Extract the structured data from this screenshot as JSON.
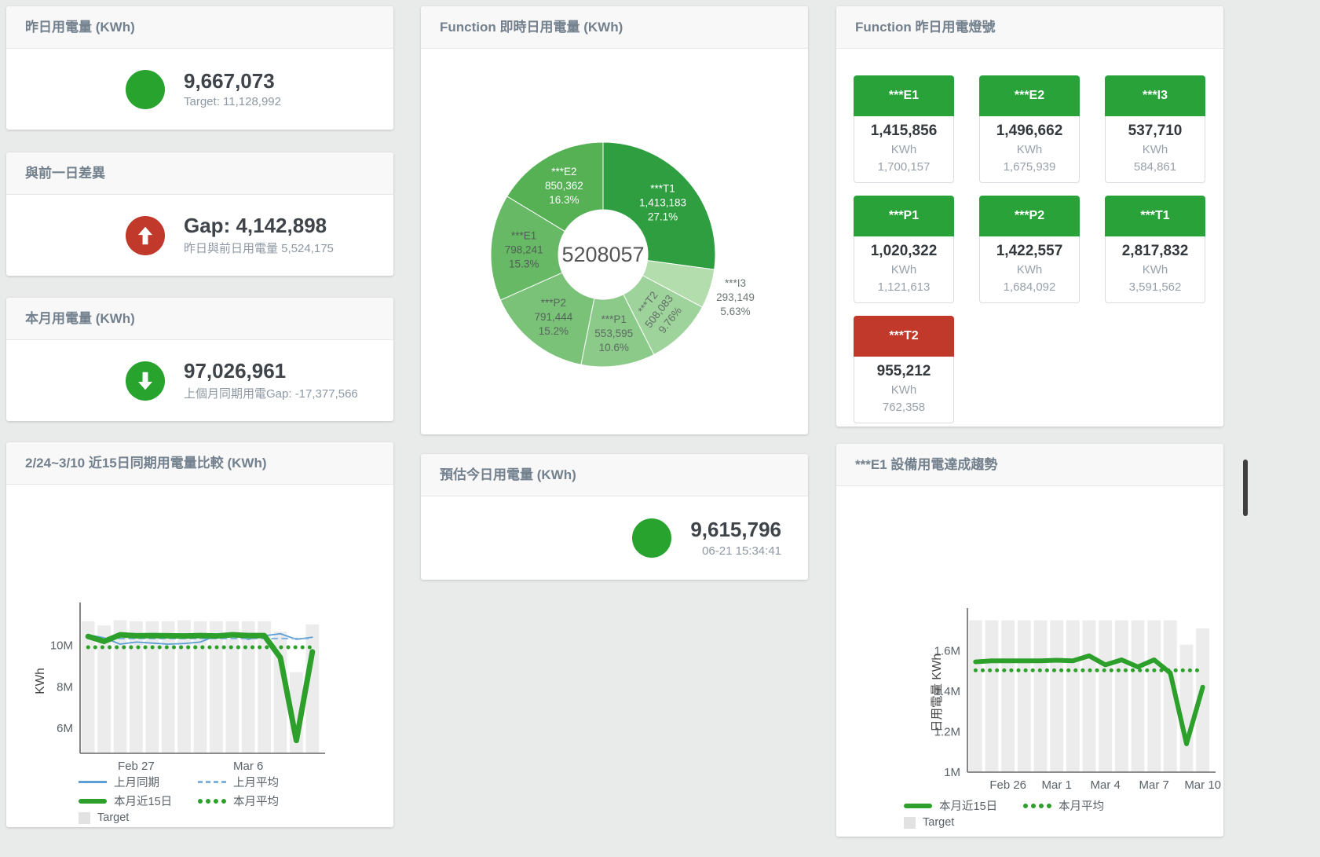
{
  "stat_cards": [
    {
      "title": "昨日用電量 (KWh)",
      "icon": "circle",
      "icon_color": "#28a32e",
      "value": "9,667,073",
      "subtitle": "Target: 11,128,992"
    },
    {
      "title": "與前一日差異",
      "icon": "arrow-up",
      "icon_color": "#c0392b",
      "value": "Gap: 4,142,898",
      "subtitle": "昨日與前日用電量 5,524,175"
    },
    {
      "title": "本月用電量 (KWh)",
      "icon": "arrow-down",
      "icon_color": "#28a32e",
      "value": "97,026,961",
      "subtitle": "上個月同期用電Gap: -17,377,566"
    },
    {
      "title": "預估今日用電量 (KWh)",
      "icon": "circle",
      "icon_color": "#28a32e",
      "value": "9,615,796",
      "subtitle": "06-21 15:34:41"
    }
  ],
  "lights": {
    "title": "Function 昨日用電燈號",
    "tiles": [
      {
        "label": "***E1",
        "header_color": "#28a239",
        "value": "1,415,856",
        "unit": "KWh",
        "target": "1,700,157"
      },
      {
        "label": "***E2",
        "header_color": "#28a239",
        "value": "1,496,662",
        "unit": "KWh",
        "target": "1,675,939"
      },
      {
        "label": "***I3",
        "header_color": "#28a239",
        "value": "537,710",
        "unit": "KWh",
        "target": "584,861"
      },
      {
        "label": "***P1",
        "header_color": "#28a239",
        "value": "1,020,322",
        "unit": "KWh",
        "target": "1,121,613"
      },
      {
        "label": "***P2",
        "header_color": "#28a239",
        "value": "1,422,557",
        "unit": "KWh",
        "target": "1,684,092"
      },
      {
        "label": "***T1",
        "header_color": "#28a239",
        "value": "2,817,832",
        "unit": "KWh",
        "target": "3,591,562"
      },
      {
        "label": "***T2",
        "header_color": "#c0392b",
        "value": "955,212",
        "unit": "KWh",
        "target": "762,358"
      }
    ]
  },
  "chart_data": [
    {
      "id": "realtime-donut",
      "type": "pie",
      "title": "Function 即時日用電量 (KWh)",
      "center_total": "5208057",
      "slices": [
        {
          "name": "***T1",
          "value": 1413183,
          "display": "1,413,183",
          "pct": "27.1%",
          "color": "#2f9e41",
          "label_color": "#ffffff"
        },
        {
          "name": "***I3",
          "value": 293149,
          "display": "293,149",
          "pct": "5.63%",
          "color": "#b3ddac",
          "label_color": "#6b7770",
          "outside": true
        },
        {
          "name": "***T2",
          "value": 508083,
          "display": "508,083",
          "pct": "9.76%",
          "color": "#9ed39b",
          "label_color": "#636f68",
          "rotate": -52
        },
        {
          "name": "***P1",
          "value": 553595,
          "display": "553,595",
          "pct": "10.6%",
          "color": "#8cca89",
          "label_color": "#5d6a63"
        },
        {
          "name": "***P2",
          "value": 791444,
          "display": "791,444",
          "pct": "15.2%",
          "color": "#7ac278",
          "label_color": "#57645d"
        },
        {
          "name": "***E1",
          "value": 798241,
          "display": "798,241",
          "pct": "15.3%",
          "color": "#68b966",
          "label_color": "#4f5f55"
        },
        {
          "name": "***E2",
          "value": 850362,
          "display": "850,362",
          "pct": "16.3%",
          "color": "#56b054",
          "label_color": "#ffffff"
        }
      ]
    },
    {
      "id": "compare-15days",
      "type": "line",
      "title": "2/24~3/10 近15日同期用電量比較 (KWh)",
      "ylabel": "KWh",
      "x": [
        "Feb 24",
        "Feb 25",
        "Feb 26",
        "Feb 27",
        "Feb 28",
        "Mar 1",
        "Mar 2",
        "Mar 3",
        "Mar 4",
        "Mar 5",
        "Mar 6",
        "Mar 7",
        "Mar 8",
        "Mar 9",
        "Mar 10"
      ],
      "bars": {
        "name": "Target",
        "color": "#ececec",
        "values": [
          11150000,
          10950000,
          11200000,
          11150000,
          11150000,
          11150000,
          11200000,
          11150000,
          11150000,
          11150000,
          11150000,
          11150000,
          10650000,
          8700000,
          11000000
        ]
      },
      "series": [
        {
          "name": "上月同期",
          "color": "#5b9fd6",
          "style": "solid",
          "width": 1.8,
          "values": [
            10500000,
            10350000,
            10050000,
            10150000,
            10100000,
            10050000,
            10080000,
            10150000,
            10450000,
            10500000,
            10280000,
            10450000,
            10550000,
            10280000,
            10380000
          ]
        },
        {
          "name": "上月平均",
          "color": "#7fb3dd",
          "style": "dashed",
          "width": 2,
          "values": [
            10320000,
            10320000,
            10320000,
            10320000,
            10320000,
            10320000,
            10320000,
            10320000,
            10320000,
            10320000,
            10320000,
            10320000,
            10320000,
            10320000,
            10320000
          ]
        },
        {
          "name": "本月近15日",
          "color": "#2da02c",
          "style": "solid",
          "width": 7,
          "values": [
            10420000,
            10180000,
            10500000,
            10450000,
            10460000,
            10450000,
            10440000,
            10460000,
            10440000,
            10500000,
            10460000,
            10460000,
            9400000,
            5420000,
            9680000
          ]
        },
        {
          "name": "本月平均",
          "color": "#2da02c",
          "style": "dotted",
          "width": 5,
          "values": [
            9900000,
            9900000,
            9900000,
            9900000,
            9900000,
            9900000,
            9900000,
            9900000,
            9900000,
            9900000,
            9900000,
            9900000,
            9900000,
            9900000,
            9900000
          ]
        }
      ],
      "ylim": [
        4800000,
        11750000
      ],
      "yticks": [
        {
          "v": 6000000,
          "label": "6M"
        },
        {
          "v": 8000000,
          "label": "8M"
        },
        {
          "v": 10000000,
          "label": "10M"
        }
      ],
      "xticks": [
        {
          "i": 3,
          "label": "Feb 27"
        },
        {
          "i": 10,
          "label": "Mar 6"
        }
      ],
      "legend": [
        [
          {
            "label": "上月同期",
            "swatch": "line",
            "color": "#5b9fd6"
          },
          {
            "label": "上月平均",
            "swatch": "dash",
            "color": "#7fb3dd"
          }
        ],
        [
          {
            "label": "本月近15日",
            "swatch": "thick",
            "color": "#2da02c"
          },
          {
            "label": "本月平均",
            "swatch": "dots",
            "color": "#2da02c"
          }
        ],
        [
          {
            "label": "Target",
            "swatch": "square",
            "color": "#e2e2e2"
          }
        ]
      ]
    },
    {
      "id": "e1-trend",
      "type": "line",
      "title": "***E1 設備用電達成趨勢",
      "ylabel": "日用電量 KWh",
      "x": [
        "Feb 24",
        "Feb 25",
        "Feb 26",
        "Feb 27",
        "Feb 28",
        "Mar 1",
        "Mar 2",
        "Mar 3",
        "Mar 4",
        "Mar 5",
        "Mar 6",
        "Mar 7",
        "Mar 8",
        "Mar 9",
        "Mar 10"
      ],
      "bars": {
        "name": "Target",
        "color": "#ececec",
        "values": [
          1750000,
          1750000,
          1750000,
          1750000,
          1750000,
          1750000,
          1750000,
          1750000,
          1750000,
          1750000,
          1750000,
          1750000,
          1750000,
          1630000,
          1710000
        ]
      },
      "series": [
        {
          "name": "本月近15日",
          "color": "#2da02c",
          "style": "solid",
          "width": 6,
          "values": [
            1545000,
            1550000,
            1550000,
            1550000,
            1550000,
            1553000,
            1550000,
            1575000,
            1530000,
            1555000,
            1520000,
            1555000,
            1490000,
            1140000,
            1420000
          ]
        },
        {
          "name": "本月平均",
          "color": "#2da02c",
          "style": "dotted",
          "width": 5,
          "values": [
            1503000,
            1503000,
            1503000,
            1503000,
            1503000,
            1503000,
            1503000,
            1503000,
            1503000,
            1503000,
            1503000,
            1503000,
            1503000,
            1503000,
            1503000
          ]
        }
      ],
      "ylim": [
        1000000,
        1780000
      ],
      "yticks": [
        {
          "v": 1000000,
          "label": "1M"
        },
        {
          "v": 1200000,
          "label": "1.2M"
        },
        {
          "v": 1400000,
          "label": "1.4M"
        },
        {
          "v": 1600000,
          "label": "1.6M"
        }
      ],
      "xticks": [
        {
          "i": 2,
          "label": "Feb 26"
        },
        {
          "i": 5,
          "label": "Mar 1"
        },
        {
          "i": 8,
          "label": "Mar 4"
        },
        {
          "i": 11,
          "label": "Mar 7"
        },
        {
          "i": 14,
          "label": "Mar 10"
        }
      ],
      "legend": [
        [
          {
            "label": "本月近15日",
            "swatch": "thick",
            "color": "#2da02c"
          },
          {
            "label": "本月平均",
            "swatch": "dots",
            "color": "#2da02c"
          }
        ],
        [
          {
            "label": "Target",
            "swatch": "square",
            "color": "#e2e2e2"
          }
        ]
      ]
    }
  ]
}
